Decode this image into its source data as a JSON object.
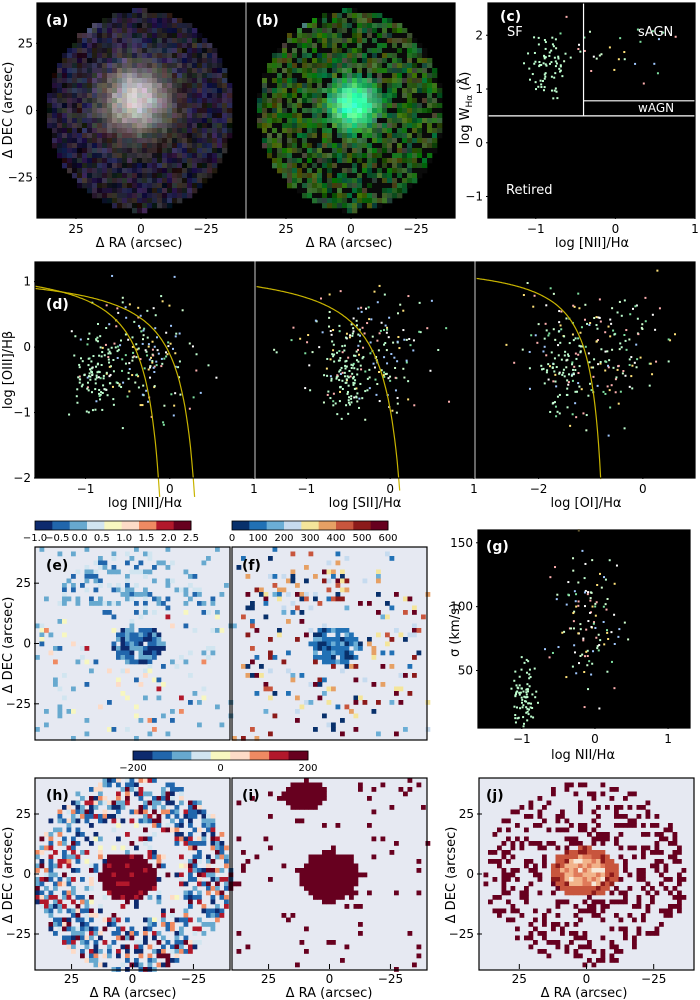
{
  "palette": {
    "background": "#000000",
    "axis_box": "#000000",
    "light_panel": "#e6e9f2",
    "curve": "#c8b400",
    "divider": "#ffffff",
    "diverging_colors": [
      "#0d2a6e",
      "#2166ac",
      "#67a9cf",
      "#d1e5f0",
      "#f7f7c0",
      "#fddbc7",
      "#ef8a62",
      "#b2182b",
      "#67001f"
    ],
    "sequential_colors": [
      "#08306b",
      "#2171b5",
      "#6baed6",
      "#c6dbef",
      "#f4e59a",
      "#e6a064",
      "#c8553d",
      "#8c1a1a",
      "#67001f"
    ]
  },
  "panels": {
    "a": {
      "label": "(a)",
      "xlabel": "Δ RA (arcsec)",
      "ylabel": "Δ DEC (arcsec)",
      "xticks": [
        "25",
        "0",
        "−25"
      ],
      "yticks": [
        "25",
        "0",
        "−25"
      ]
    },
    "b": {
      "label": "(b)",
      "xlabel": "Δ RA (arcsec)",
      "xticks": [
        "25",
        "0",
        "−25"
      ]
    },
    "c": {
      "label": "(c)",
      "xlabel": "log [NII]/Hα",
      "ylabel": "log W",
      "ylabel_sub": "Hα",
      "ylabel_unit": " (Å)",
      "xticks": [
        "−1",
        "0",
        "1"
      ],
      "yticks": [
        "2",
        "1",
        "0",
        "−1"
      ],
      "region_sf": "SF",
      "region_sagn": "sAGN",
      "region_wagn": "wAGN",
      "region_retired": "Retired"
    },
    "d": {
      "label": "(d)",
      "ylabel": "log [OIII]/Hβ",
      "yticks": [
        "1",
        "0",
        "−1",
        "−2"
      ],
      "sub1": {
        "xlabel": "log [NII]/Hα",
        "xticks": [
          "−1",
          "0",
          "1"
        ]
      },
      "sub2": {
        "xlabel": "log [SII]/Hα",
        "xticks": [
          "−1",
          "0",
          "1"
        ]
      },
      "sub3": {
        "xlabel": "log [OI]/Hα",
        "xticks": [
          "−2",
          "0"
        ]
      }
    },
    "e": {
      "label": "(e)",
      "ylabel": "Δ DEC (arcsec)",
      "yticks": [
        "25",
        "0",
        "−25"
      ],
      "colorbar_ticks": [
        "−1.0",
        "−0.5",
        "0.0",
        "0.5",
        "1.0",
        "1.5",
        "2.0",
        "2.5"
      ]
    },
    "f": {
      "label": "(f)",
      "colorbar_ticks": [
        "0",
        "100",
        "200",
        "300",
        "400",
        "500",
        "600"
      ]
    },
    "g": {
      "label": "(g)",
      "xlabel": "log NII/Hα",
      "ylabel": "σ (km/s)",
      "xticks": [
        "−1",
        "0",
        "1"
      ],
      "yticks": [
        "150",
        "100",
        "50"
      ]
    },
    "h": {
      "label": "(h)",
      "xlabel": "Δ RA (arcsec)",
      "ylabel": "Δ DEC (arcsec)",
      "xticks": [
        "25",
        "0",
        "−25"
      ],
      "yticks": [
        "25",
        "0",
        "−25"
      ]
    },
    "i": {
      "label": "(i)",
      "xlabel": "Δ RA (arcsec)",
      "xticks": [
        "25",
        "0",
        "−25"
      ]
    },
    "j": {
      "label": "(j)",
      "xlabel": "Δ RA (arcsec)",
      "ylabel": "Δ DEC (arcsec)",
      "xticks": [
        "25",
        "0",
        "−25"
      ],
      "yticks": [
        "25",
        "0",
        "−25"
      ]
    },
    "hi_colorbar": {
      "ticks": [
        "−200",
        "0",
        "200"
      ]
    }
  },
  "chart_data": [
    {
      "panel": "a",
      "type": "heatmap",
      "description_axes": "RGB image",
      "xlim": [
        40,
        -40
      ],
      "ylim": [
        -40,
        40
      ]
    },
    {
      "panel": "b",
      "type": "heatmap",
      "xlim": [
        40,
        -40
      ],
      "ylim": [
        -40,
        40
      ]
    },
    {
      "panel": "c",
      "type": "scatter",
      "xlim": [
        -1.6,
        1.0
      ],
      "ylim": [
        -1.4,
        2.6
      ],
      "dividers": {
        "vertical_x": -0.4,
        "horizontal_y": 0.5,
        "sf_agn_split_y": 0.78
      }
    },
    {
      "panel": "d1",
      "type": "scatter",
      "xlim": [
        -1.6,
        1.0
      ],
      "ylim": [
        -2.0,
        1.3
      ]
    },
    {
      "panel": "d2",
      "type": "scatter",
      "xlim": [
        -1.6,
        1.0
      ],
      "ylim": [
        -2.0,
        1.3
      ]
    },
    {
      "panel": "d3",
      "type": "scatter",
      "xlim": [
        -3.2,
        1.0
      ],
      "ylim": [
        -2.0,
        1.3
      ]
    },
    {
      "panel": "e",
      "type": "heatmap",
      "colorbar_range": [
        -1.2,
        2.5
      ],
      "xlim": [
        40,
        -40
      ],
      "ylim": [
        -40,
        40
      ]
    },
    {
      "panel": "f",
      "type": "heatmap",
      "colorbar_range": [
        0,
        680
      ],
      "xlim": [
        40,
        -40
      ],
      "ylim": [
        -40,
        40
      ]
    },
    {
      "panel": "g",
      "type": "scatter",
      "xlim": [
        -1.6,
        1.3
      ],
      "ylim": [
        5,
        160
      ]
    },
    {
      "panel": "h",
      "type": "heatmap",
      "colorbar_range": [
        -250,
        250
      ],
      "xlim": [
        40,
        -40
      ],
      "ylim": [
        -40,
        40
      ]
    },
    {
      "panel": "i",
      "type": "heatmap",
      "colorbar_range": [
        -250,
        250
      ],
      "xlim": [
        40,
        -40
      ],
      "ylim": [
        -40,
        40
      ]
    },
    {
      "panel": "j",
      "type": "heatmap",
      "xlim": [
        40,
        -40
      ],
      "ylim": [
        -40,
        40
      ]
    }
  ]
}
